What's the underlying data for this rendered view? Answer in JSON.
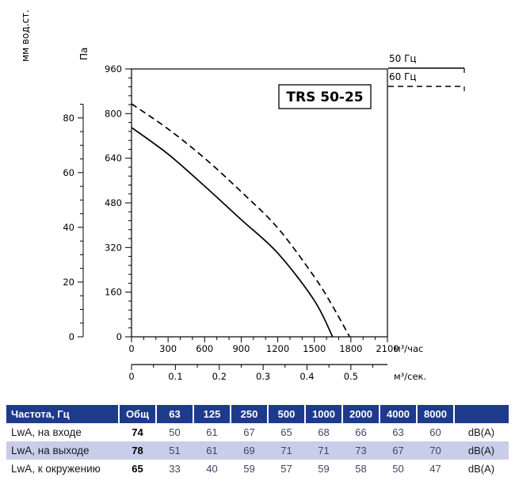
{
  "page_title": "TRS 50-25",
  "chart_data": {
    "type": "line",
    "title": "TRS 50-25",
    "y_axis_pa": {
      "label": "Па",
      "min": 0,
      "max": 960,
      "tick_step": 160,
      "minor_step": 32
    },
    "y_axis_mm": {
      "label": "мм вод.ст.",
      "min": 0,
      "max": 85,
      "tick_step": 20,
      "minor_step": 5,
      "pa_per_unit": 9.80665
    },
    "x_axis_primary": {
      "label": "м³/час",
      "min": 0,
      "max": 2100,
      "tick_step": 300,
      "minor_step": 100
    },
    "x_axis_secondary": {
      "label": "м³/сек.",
      "min": 0,
      "max": 0.58,
      "tick_step": 0.1,
      "minor_step": 0.05,
      "label_max": 0.5,
      "m3h_per_unit": 3600
    },
    "legend": [
      {
        "label": "50 Гц",
        "style": "solid"
      },
      {
        "label": "60 Гц",
        "style": "dashed"
      }
    ],
    "series": [
      {
        "name": "50 Гц",
        "style": "solid",
        "points": [
          [
            0,
            750
          ],
          [
            300,
            655
          ],
          [
            600,
            540
          ],
          [
            900,
            420
          ],
          [
            1200,
            300
          ],
          [
            1500,
            130
          ],
          [
            1650,
            0
          ]
        ]
      },
      {
        "name": "60 Гц",
        "style": "dashed",
        "points": [
          [
            0,
            835
          ],
          [
            300,
            745
          ],
          [
            600,
            640
          ],
          [
            900,
            520
          ],
          [
            1200,
            390
          ],
          [
            1500,
            215
          ],
          [
            1650,
            110
          ],
          [
            1790,
            0
          ]
        ]
      }
    ],
    "grid": "off",
    "legend_position": "top-right"
  },
  "table": {
    "header_bg": "#1d3a8c",
    "stripe_bg": "#c9cde9",
    "headers": [
      "Частота, Гц",
      "Общ",
      "63",
      "125",
      "250",
      "500",
      "1000",
      "2000",
      "4000",
      "8000",
      ""
    ],
    "rows": [
      {
        "label": "LwA, на входе",
        "total": "74",
        "values": [
          "50",
          "61",
          "67",
          "65",
          "68",
          "66",
          "63",
          "60"
        ],
        "unit": "dB(A)"
      },
      {
        "label": "LwA, на выходе",
        "total": "78",
        "values": [
          "51",
          "61",
          "69",
          "71",
          "71",
          "73",
          "67",
          "70"
        ],
        "unit": "dB(A)"
      },
      {
        "label": "LwA, к окружению",
        "total": "65",
        "values": [
          "33",
          "40",
          "59",
          "57",
          "59",
          "58",
          "50",
          "47"
        ],
        "unit": "dB(A)"
      }
    ]
  }
}
